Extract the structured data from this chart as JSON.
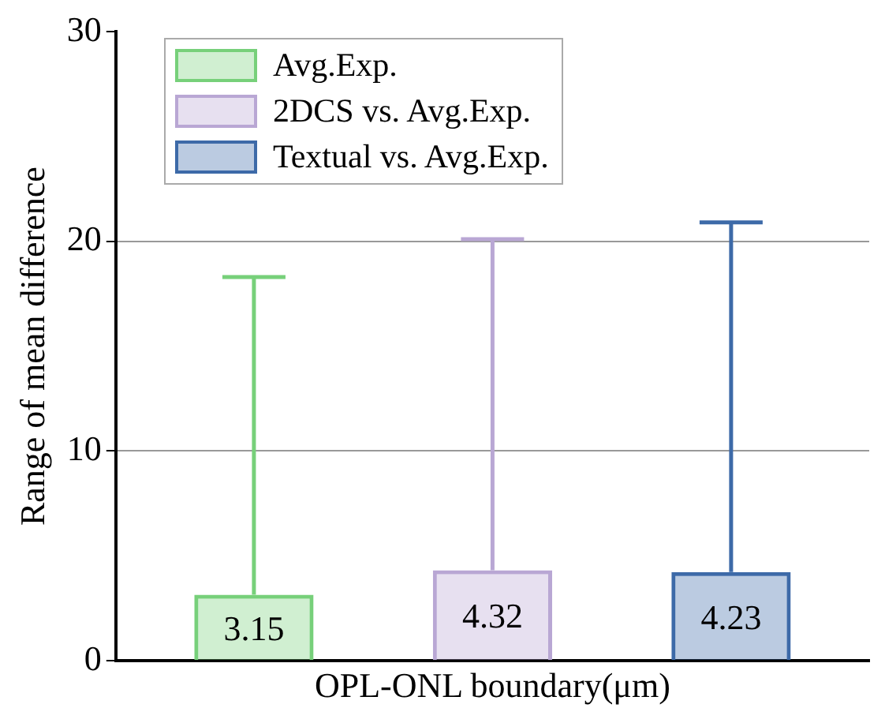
{
  "chart_data": {
    "type": "bar",
    "xlabel": "OPL-ONL boundary(μm)",
    "ylabel": "Range of mean difference",
    "categories": [
      null
    ],
    "series": [
      {
        "name": "Avg.Exp.",
        "color": "#77d07a",
        "values": [
          3.15
        ],
        "errors": [
          [
            3.15,
            18.3
          ]
        ]
      },
      {
        "name": "2DCS vs. Avg.Exp.",
        "color": "#b9a7d4",
        "values": [
          4.32
        ],
        "errors": [
          [
            4.32,
            20.1
          ]
        ]
      },
      {
        "name": "Textual vs. Avg.Exp.",
        "color": "#3d6aa8",
        "values": [
          4.23
        ],
        "errors": [
          [
            4.23,
            20.9
          ]
        ]
      }
    ],
    "ylim": [
      0,
      30
    ],
    "yticks": [
      0,
      10,
      20,
      30
    ],
    "grid": "y",
    "legend": "top left",
    "data_labels": true
  }
}
